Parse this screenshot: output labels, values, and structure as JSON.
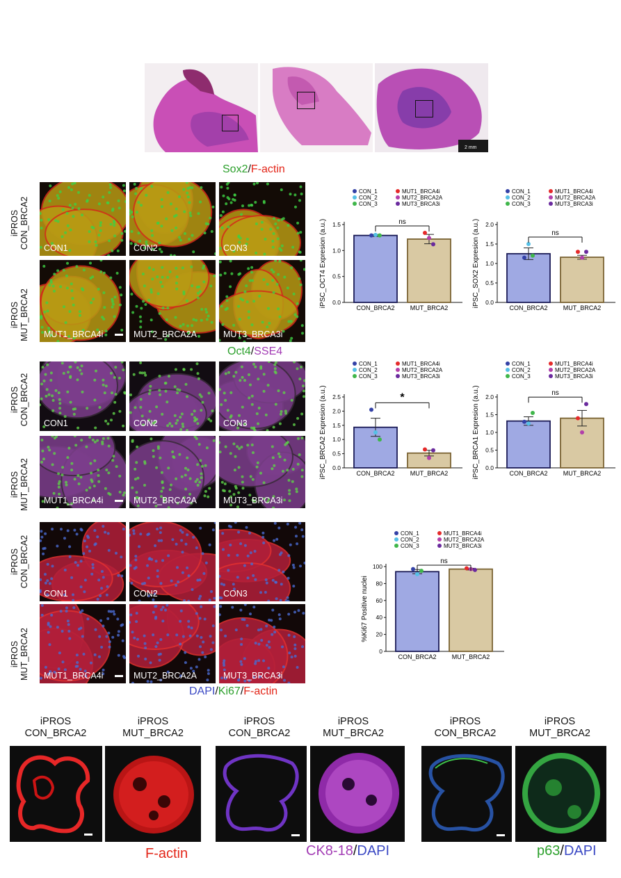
{
  "he_scale_label": "2 mm",
  "panel_labels": {
    "rowA_top": "iPROS CON_BRCA2",
    "rowA_bottom": "iPROS MUT_BRCA2",
    "rowB_top": "iPROS CON_BRCA2",
    "rowB_bottom": "iPROS MUT_BRCA2",
    "rowC_top": "iPROS CON_BRCA2",
    "rowC_bottom": "iPROS MUT_BRCA2",
    "rowA_top_l1": "iPROS",
    "rowA_top_l2": "CON_BRCA2",
    "rowA_bottom_l1": "iPROS",
    "rowA_bottom_l2": "MUT_BRCA2",
    "rowB_top_l1": "iPROS",
    "rowB_top_l2": "CON_BRCA2",
    "rowB_bottom_l1": "iPROS",
    "rowB_bottom_l2": "MUT_BRCA2",
    "rowC_top_l1": "iPROS",
    "rowC_top_l2": "CON_BRCA2",
    "rowC_bottom_l1": "iPROS",
    "rowC_bottom_l2": "MUT_BRCA2"
  },
  "tile_labels": {
    "con": [
      "CON1",
      "CON2",
      "CON3"
    ],
    "mut": [
      "MUT1_BRCA4i",
      "MUT2_BRCA2A",
      "MUT3_BRCA3i"
    ]
  },
  "stains": {
    "sox2": "Sox2",
    "sep": "/",
    "factin": "F-actin",
    "oct4": "Oct4",
    "sse4": "SSE4",
    "dapi": "DAPI",
    "ki67": "Ki67",
    "ck818": "CK8-18",
    "p63": "p63"
  },
  "organoids": {
    "head_l1": "iPROS",
    "con": "CON_BRCA2",
    "mut": "MUT_BRCA2"
  },
  "colors": {
    "bar_con": "#9fa9e3",
    "bar_mut": "#d9c9a3",
    "bar_edge": "#1a1a55",
    "bar_edge_mut": "#7a6333",
    "con_1": "#3341a6",
    "con_2": "#55c0e6",
    "con_3": "#3fb64a",
    "mut1": "#e52a2a",
    "mut2": "#b23faa",
    "mut3": "#6a2a9e"
  },
  "legend": [
    "CON_1",
    "CON_2",
    "CON_3",
    "MUT1_BRCA4i",
    "MUT2_BRCA2A",
    "MUT3_BRCA3i"
  ],
  "chart_data": [
    {
      "type": "bar",
      "categories": [
        "CON_BRCA2",
        "MUT_BRCA2"
      ],
      "values": [
        1.29,
        1.22
      ],
      "error": [
        0.02,
        0.09
      ],
      "points": [
        [
          1.29,
          1.3,
          1.29
        ],
        [
          1.34,
          1.24,
          1.12
        ]
      ],
      "ylabel": "iPSC_OCT4 Expresion (a.u.)",
      "ylim": [
        0,
        1.5
      ],
      "yticks": [
        0.0,
        0.5,
        1.0,
        1.5
      ],
      "significance": "ns",
      "legend_placement": "top"
    },
    {
      "type": "bar",
      "categories": [
        "CON_BRCA2",
        "MUT_BRCA2"
      ],
      "values": [
        1.25,
        1.16
      ],
      "error": [
        0.15,
        0.05
      ],
      "points": [
        [
          1.15,
          1.5,
          1.2
        ],
        [
          1.3,
          1.15,
          1.3
        ]
      ],
      "ylabel": "iPSC_SOX2 Expresion (a.u.)",
      "ylim": [
        0,
        2.0
      ],
      "yticks": [
        0.0,
        0.5,
        1.0,
        1.5,
        2.0
      ],
      "significance": "ns",
      "legend_placement": "top"
    },
    {
      "type": "bar",
      "categories": [
        "CON_BRCA2",
        "MUT_BRCA2"
      ],
      "values": [
        1.43,
        0.52
      ],
      "error": [
        0.32,
        0.1
      ],
      "points": [
        [
          2.05,
          1.25,
          1.0
        ],
        [
          0.65,
          0.35,
          0.62
        ]
      ],
      "ylabel": "iPSC_BRCA2 Expresion (a.u.)",
      "ylim": [
        0,
        2.5
      ],
      "yticks": [
        0.0,
        0.5,
        1.0,
        1.5,
        2.0,
        2.5
      ],
      "significance": "*",
      "legend_placement": "top"
    },
    {
      "type": "bar",
      "categories": [
        "CON_BRCA2",
        "MUT_BRCA2"
      ],
      "values": [
        1.32,
        1.4
      ],
      "error": [
        0.12,
        0.22
      ],
      "points": [
        [
          1.3,
          1.25,
          1.55
        ],
        [
          1.4,
          1.0,
          1.8
        ]
      ],
      "ylabel": "iPSC_BRCA1 Expresion (a.u.)",
      "ylim": [
        0,
        2.0
      ],
      "yticks": [
        0.0,
        0.5,
        1.0,
        1.5,
        2.0
      ],
      "significance": "ns",
      "legend_placement": "top"
    },
    {
      "type": "bar",
      "categories": [
        "CON_BRCA2",
        "MUT_BRCA2"
      ],
      "values": [
        94,
        97
      ],
      "error": [
        2.5,
        1.0
      ],
      "points": [
        [
          97,
          91,
          95
        ],
        [
          98,
          97,
          96
        ]
      ],
      "ylabel": "%Ki67 Positive nuclei",
      "ylim": [
        0,
        100
      ],
      "yticks": [
        0,
        20,
        40,
        60,
        80,
        100
      ],
      "significance": "ns",
      "legend_placement": "top"
    }
  ]
}
